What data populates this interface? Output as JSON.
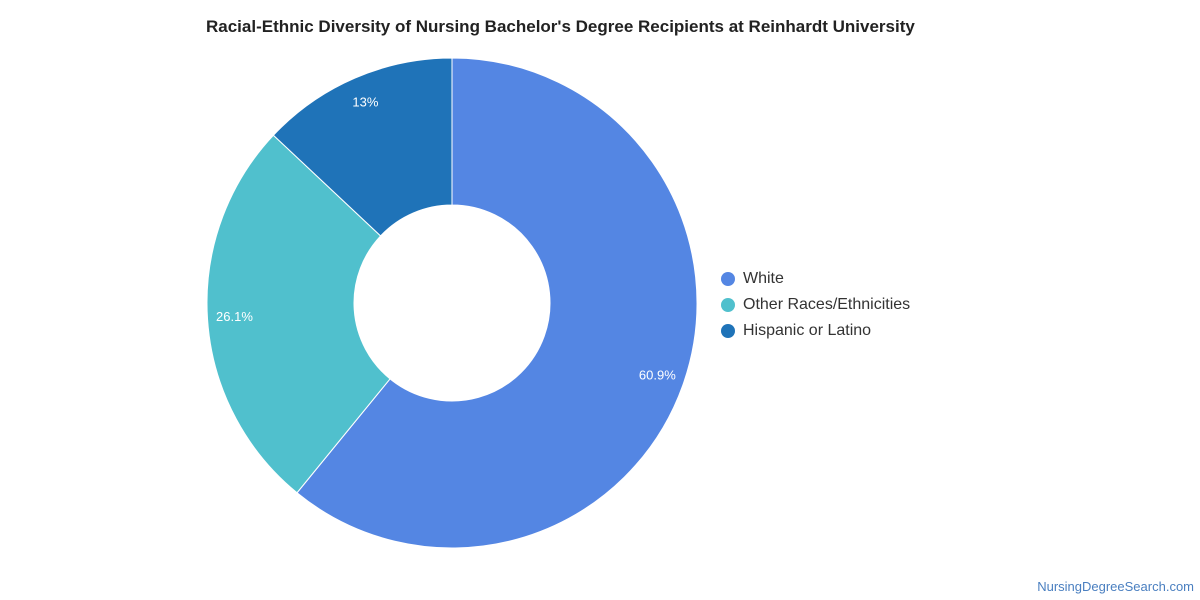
{
  "chart_data": {
    "type": "pie",
    "title": "Racial-Ethnic Diversity of Nursing Bachelor's Degree Recipients at Reinhardt University",
    "donut": true,
    "legend_position": "right",
    "slices": [
      {
        "label": "White",
        "value": 60.9,
        "display": "60.9%",
        "color": "#5486e3"
      },
      {
        "label": "Other Races/Ethnicities",
        "value": 26.1,
        "display": "26.1%",
        "color": "#50c0cd"
      },
      {
        "label": "Hispanic or Latino",
        "value": 13,
        "display": "13%",
        "color": "#1f73b8"
      }
    ]
  },
  "source_text": "NursingDegreeSearch.com"
}
